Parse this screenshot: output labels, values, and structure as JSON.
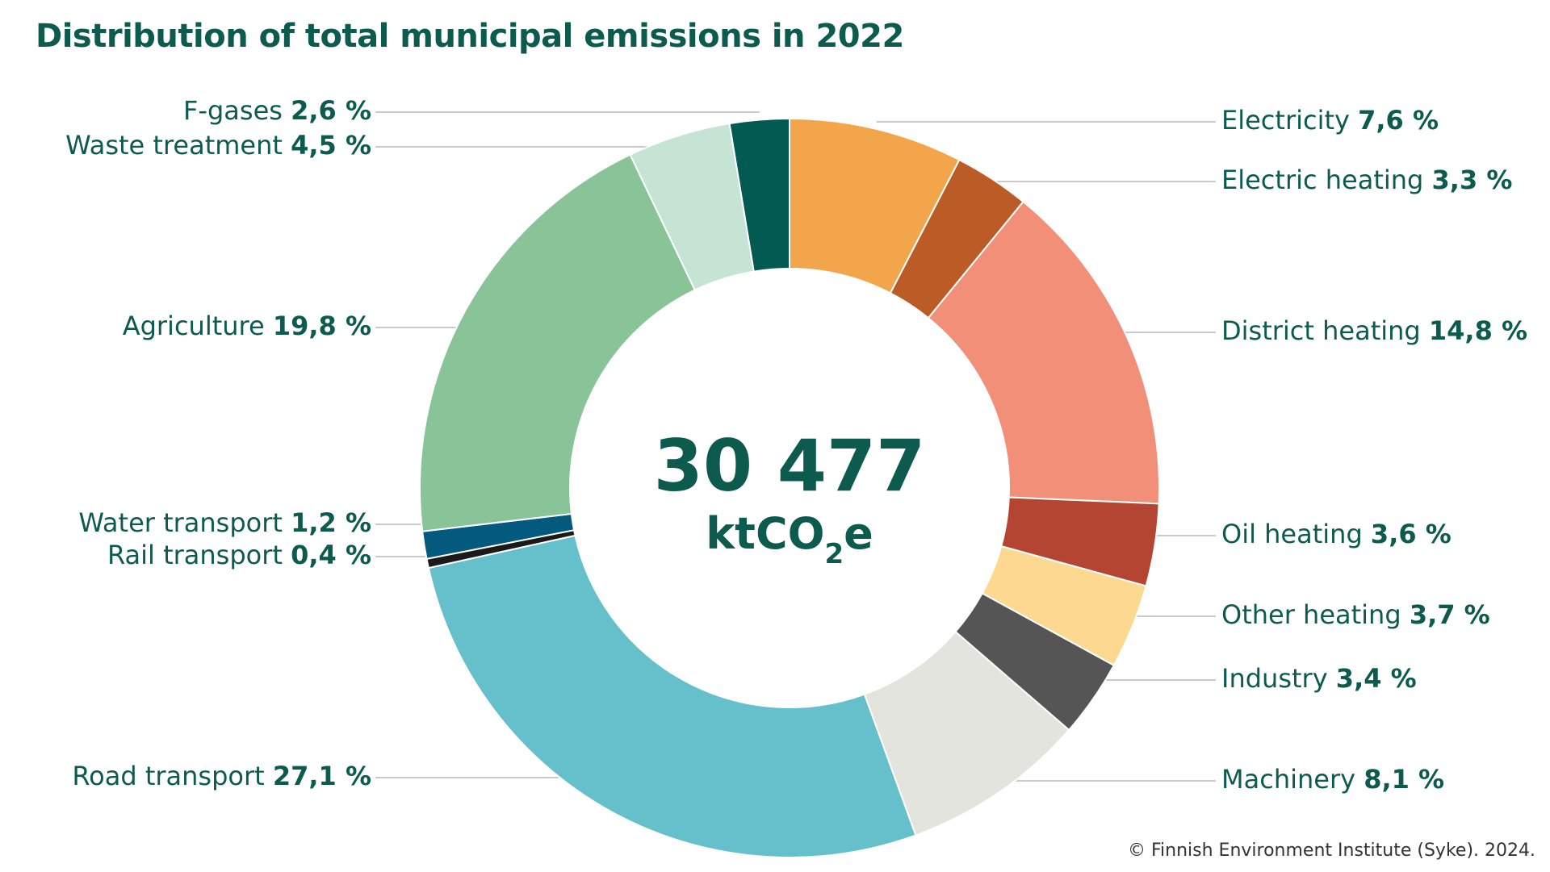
{
  "chart_data": {
    "type": "pie",
    "title": "Distribution of total municipal emissions in 2022",
    "center": {
      "value": "30 477",
      "unit_prefix": "ktCO",
      "unit_sub": "2",
      "unit_suffix": "e"
    },
    "credit": "© Finnish Environment Institute (Syke). 2024.",
    "slices": [
      {
        "name": "Electricity",
        "value": 7.6,
        "label": "7,6 %",
        "color": "#f2a54b"
      },
      {
        "name": "Electric heating",
        "value": 3.3,
        "label": "3,3 %",
        "color": "#bb5b26"
      },
      {
        "name": "District heating",
        "value": 14.8,
        "label": "14,8 %",
        "color": "#f28f79"
      },
      {
        "name": "Oil heating",
        "value": 3.6,
        "label": "3,6 %",
        "color": "#b34532"
      },
      {
        "name": "Other heating",
        "value": 3.7,
        "label": "3,7 %",
        "color": "#fdd890"
      },
      {
        "name": "Industry",
        "value": 3.4,
        "label": "3,4 %",
        "color": "#555555"
      },
      {
        "name": "Machinery",
        "value": 8.1,
        "label": "8,1 %",
        "color": "#e4e4df"
      },
      {
        "name": "Road transport",
        "value": 27.1,
        "label": "27,1 %",
        "color": "#66c0cb"
      },
      {
        "name": "Rail transport",
        "value": 0.4,
        "label": "0,4 %",
        "color": "#1a1a1a"
      },
      {
        "name": "Water transport",
        "value": 1.2,
        "label": "1,2 %",
        "color": "#035a7e"
      },
      {
        "name": "Agriculture",
        "value": 19.8,
        "label": "19,8 %",
        "color": "#88c497"
      },
      {
        "name": "Waste treatment",
        "value": 4.5,
        "label": "4,5 %",
        "color": "#c6e4d3"
      },
      {
        "name": "F-gases",
        "value": 2.6,
        "label": "2,6 %",
        "color": "#025a53"
      }
    ]
  }
}
